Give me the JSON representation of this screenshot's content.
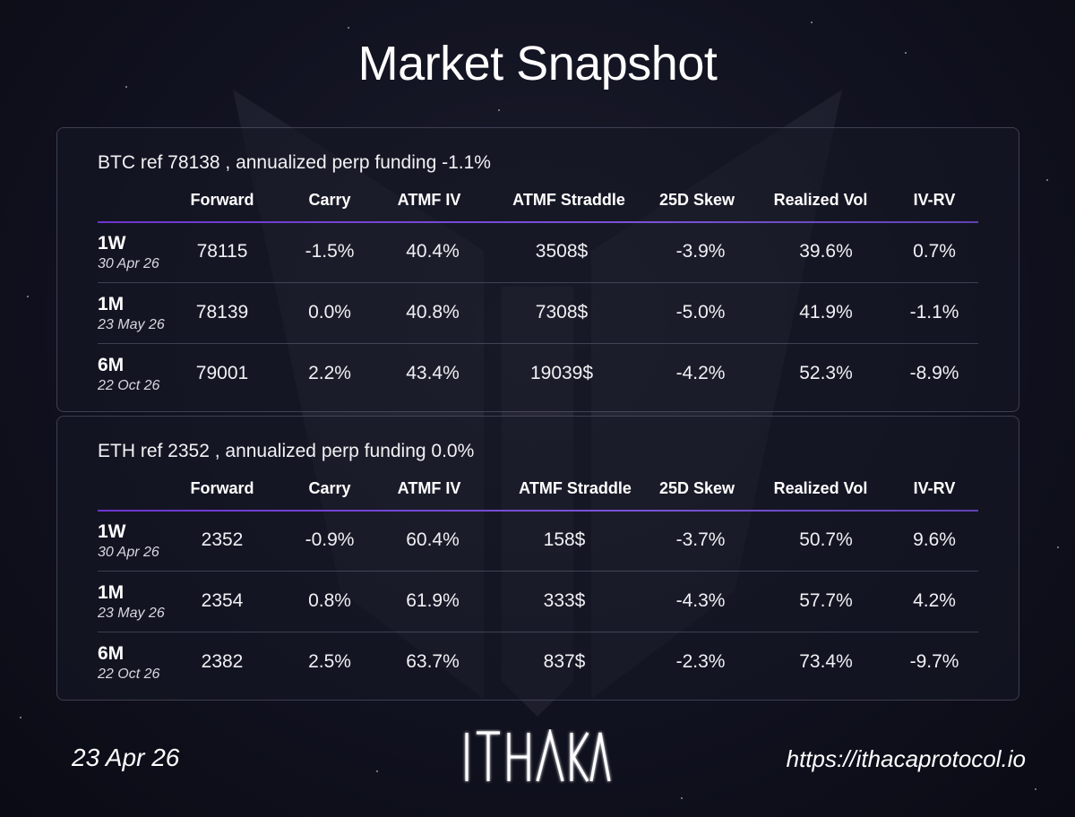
{
  "page": {
    "title": "Market Snapshot",
    "date": "23 Apr 26",
    "url": "https://ithacaprotocol.io",
    "brand": "ITHACA"
  },
  "colors": {
    "accent": "#7c3aed",
    "background": "#111220"
  },
  "tables": [
    {
      "title": "BTC ref 78138 , annualized perp funding -1.1%",
      "headers": [
        "Forward",
        "Carry",
        "ATMF IV",
        "ATMF Straddle",
        "25D Skew",
        "Realized Vol",
        "IV-RV"
      ],
      "rows": [
        {
          "tenor": "1W",
          "date": "30 Apr 26",
          "values": [
            "78115",
            "-1.5%",
            "40.4%",
            "3508$",
            "-3.9%",
            "39.6%",
            "0.7%"
          ]
        },
        {
          "tenor": "1M",
          "date": "23 May 26",
          "values": [
            "78139",
            "0.0%",
            "40.8%",
            "7308$",
            "-5.0%",
            "41.9%",
            "-1.1%"
          ]
        },
        {
          "tenor": "6M",
          "date": "22 Oct 26",
          "values": [
            "79001",
            "2.2%",
            "43.4%",
            "19039$",
            "-4.2%",
            "52.3%",
            "-8.9%"
          ]
        }
      ]
    },
    {
      "title": "ETH ref 2352 , annualized perp funding 0.0%",
      "headers": [
        "Forward",
        "Carry",
        "ATMF IV",
        "ATMF Straddle",
        "25D Skew",
        "Realized Vol",
        "IV-RV"
      ],
      "rows": [
        {
          "tenor": "1W",
          "date": "30 Apr 26",
          "values": [
            "2352",
            "-0.9%",
            "60.4%",
            "158$",
            "-3.7%",
            "50.7%",
            "9.6%"
          ]
        },
        {
          "tenor": "1M",
          "date": "23 May 26",
          "values": [
            "2354",
            "0.8%",
            "61.9%",
            "333$",
            "-4.3%",
            "57.7%",
            "4.2%"
          ]
        },
        {
          "tenor": "6M",
          "date": "22 Oct 26",
          "values": [
            "2382",
            "2.5%",
            "63.7%",
            "837$",
            "-2.3%",
            "73.4%",
            "-9.7%"
          ]
        }
      ]
    }
  ]
}
